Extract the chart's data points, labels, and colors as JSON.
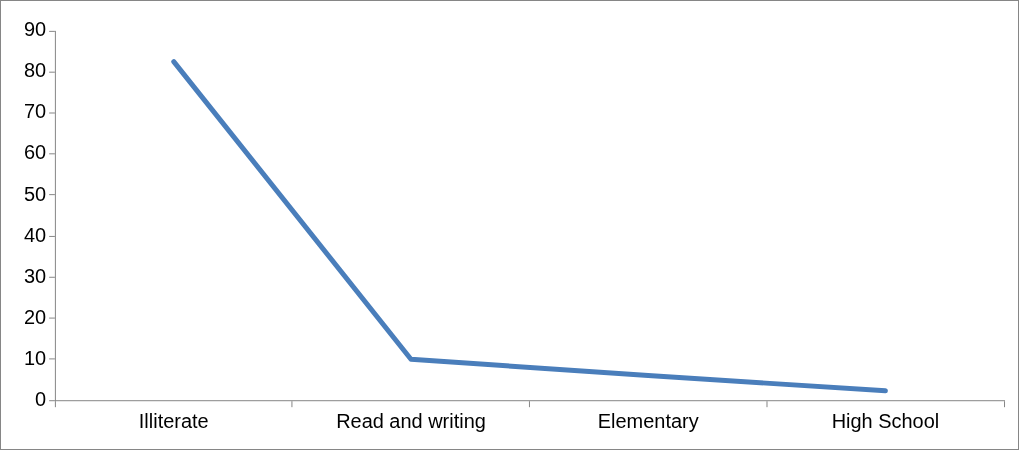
{
  "chart_data": {
    "type": "line",
    "categories": [
      "Illiterate",
      "Read and writing",
      "Elementary",
      "High School"
    ],
    "series": [
      {
        "color": "#4a7ebb",
        "values": [
          82.5,
          10,
          6,
          2.3
        ]
      }
    ],
    "ylim": [
      0,
      90
    ],
    "yticks": [
      0,
      10,
      20,
      30,
      40,
      50,
      60,
      70,
      80,
      90
    ],
    "grid": false,
    "legend": false,
    "marker": "none",
    "line_style": "solid"
  }
}
